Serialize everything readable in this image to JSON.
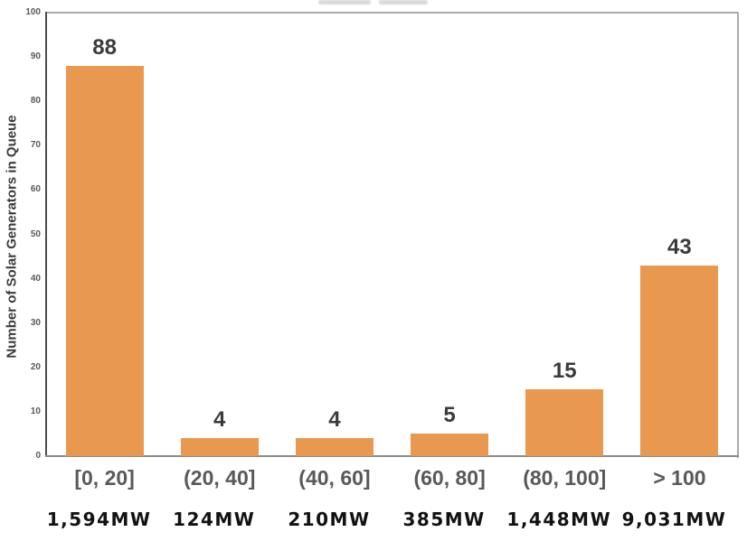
{
  "chart_data": {
    "type": "bar",
    "title": "",
    "ylabel": "Number of Solar Generators in Queue",
    "xlabel": "",
    "categories": [
      "[0, 20]",
      "(20, 40]",
      "(40, 60]",
      "(60, 80]",
      "(80, 100]",
      "> 100"
    ],
    "values": [
      88,
      4,
      4,
      5,
      15,
      43
    ],
    "value_labels": [
      "88",
      "4",
      "4",
      "5",
      "15",
      "43"
    ],
    "capacity_labels": [
      "1,594MW",
      "124MW",
      "210MW",
      "385MW",
      "1,448MW",
      "9,031MW"
    ],
    "ylim": [
      0,
      100
    ],
    "yticks": [
      0,
      10,
      20,
      30,
      40,
      50,
      60,
      70,
      80,
      90,
      100
    ],
    "grid": false,
    "legend": null,
    "bar_color": "#E9994F",
    "value_label_color": "#3B3B3B",
    "category_label_color": "#595959",
    "axis_color": "#4D4D4D"
  }
}
